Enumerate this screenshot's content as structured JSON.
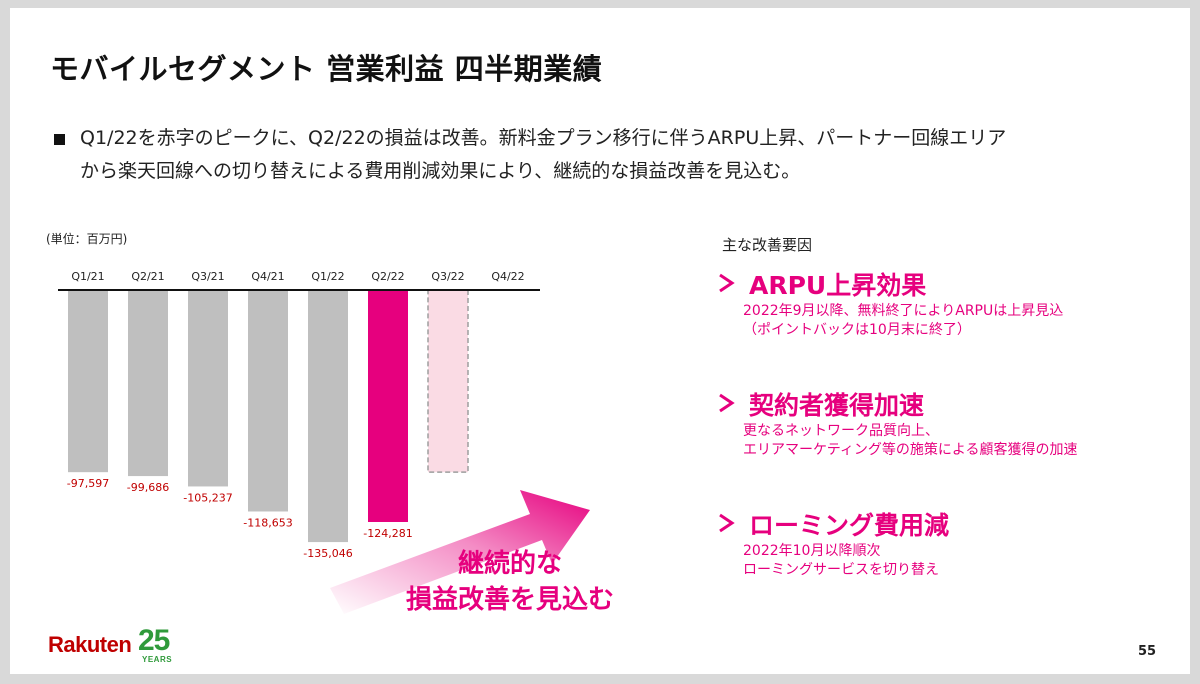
{
  "title": "モバイルセグメント 営業利益 四半期業績",
  "bullet": {
    "line1": "Q1/22を赤字のピークに、Q2/22の損益は改善。新料金プラン移行に伴うARPU上昇、パートナー回線エリア",
    "line2": "から楽天回線への切り替えによる費用削減効果により、継続的な損益改善を見込む。"
  },
  "unit_label": "(単位：百万円)",
  "chart_data": {
    "type": "bar",
    "categories": [
      "Q1/21",
      "Q2/21",
      "Q3/21",
      "Q4/21",
      "Q1/22",
      "Q2/22",
      "Q3/22",
      "Q4/22"
    ],
    "values": [
      -97597,
      -99686,
      -105237,
      -118653,
      -135046,
      -124281,
      null,
      null
    ],
    "value_labels": [
      "-97,597",
      "-99,686",
      "-105,237",
      "-118,653",
      "-135,046",
      "-124,281",
      "",
      ""
    ],
    "forecast": {
      "category": "Q3/22",
      "value": -97597
    },
    "ylim": [
      -150000,
      0
    ],
    "colors": {
      "actual": "#bfbfbf",
      "highlight": "#e6007e",
      "forecast_fill": "#fadbe4",
      "forecast_border": "#9e9e9e",
      "label": "#c00000"
    }
  },
  "factors": {
    "heading": "主な改善要因",
    "items": [
      {
        "title": "ARPU上昇効果",
        "line1": "2022年9月以降、無料終了によりARPUは上昇見込",
        "line2": "（ポイントバックは10月末に終了）"
      },
      {
        "title": "契約者獲得加速",
        "line1": "更なるネットワーク品質向上、",
        "line2": "エリアマーケティング等の施策による顧客獲得の加速"
      },
      {
        "title": "ローミング費用減",
        "line1": "2022年10月以降順次",
        "line2": "ローミングサービスを切り替え"
      }
    ]
  },
  "message": {
    "line1": "継続的な",
    "line2": "損益改善を見込む"
  },
  "logo": {
    "brand": "Rakuten",
    "number": "25",
    "years": "YEARS"
  },
  "page_number": "55",
  "colors": {
    "accent": "#e6007e"
  }
}
